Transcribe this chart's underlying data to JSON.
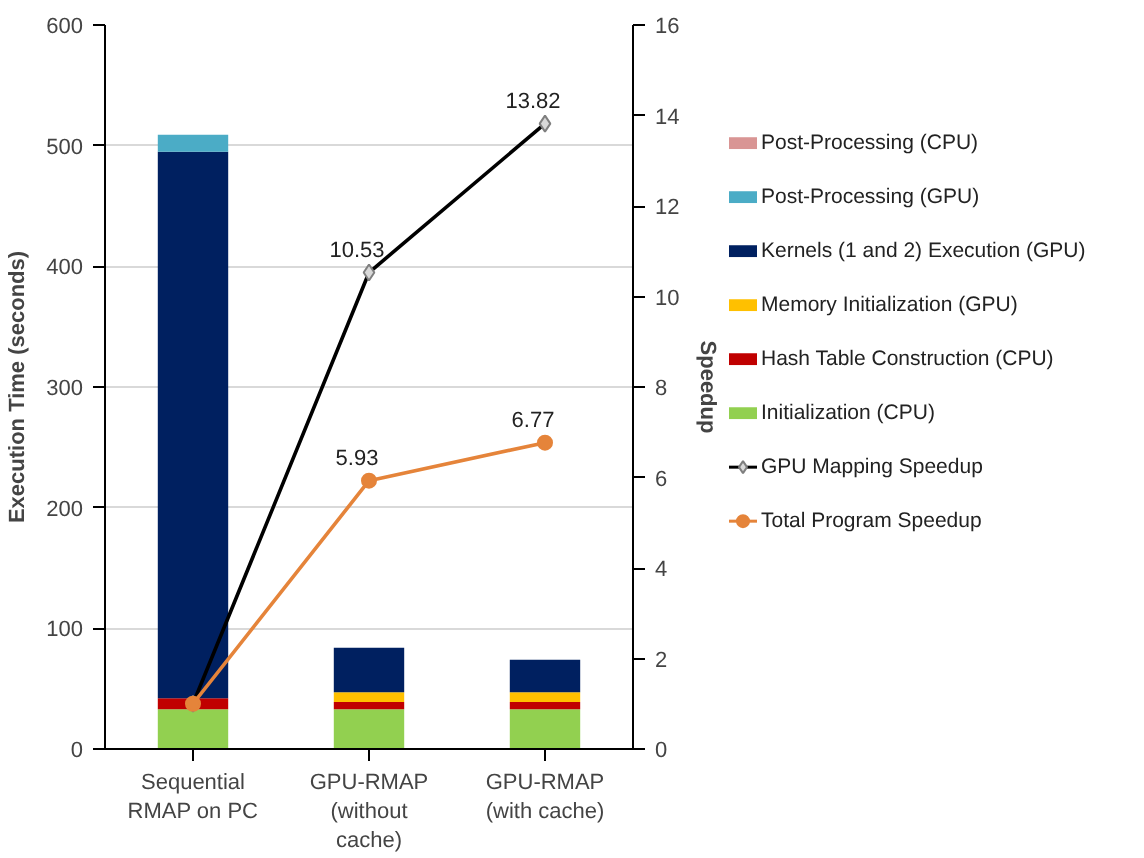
{
  "chart_data": {
    "type": "bar",
    "stacked": true,
    "categories": [
      "Sequential\nRMAP on PC",
      "GPU-RMAP\n(without\ncache)",
      "GPU-RMAP\n(with cache)"
    ],
    "ylabel": "Execution Time (seconds)",
    "y2label": "Speedup",
    "ylim": [
      0,
      600
    ],
    "yticks": [
      0,
      100,
      200,
      300,
      400,
      500,
      600
    ],
    "y2lim": [
      0,
      16
    ],
    "y2ticks": [
      0,
      2,
      4,
      6,
      8,
      10,
      12,
      14,
      16
    ],
    "grid": "y",
    "legend": "right",
    "series": [
      {
        "name": "Initialization (CPU)",
        "color": "#92d050",
        "values": [
          33,
          33,
          33
        ]
      },
      {
        "name": "Hash Table Construction (CPU)",
        "color": "#c00000",
        "values": [
          9,
          6,
          6
        ]
      },
      {
        "name": "Memory Initialization (GPU)",
        "color": "#ffc000",
        "values": [
          0,
          8,
          8
        ]
      },
      {
        "name": "Kernels (1 and 2) Execution (GPU)",
        "color": "#002060",
        "values": [
          453,
          37,
          27
        ]
      },
      {
        "name": "Post-Processing (GPU)",
        "color": "#4bacc6",
        "values": [
          14,
          0,
          0
        ]
      },
      {
        "name": "Post-Processing (CPU)",
        "color": "#d99594",
        "values": [
          0,
          0,
          0
        ]
      },
      {
        "name": "GPU Mapping Speedup",
        "type": "line",
        "axis": "y2",
        "color": "#000000",
        "marker": "diamond",
        "values": [
          1,
          10.53,
          13.82
        ],
        "value_labels": [
          null,
          "10.53",
          "13.82"
        ]
      },
      {
        "name": "Total Program Speedup",
        "type": "line",
        "axis": "y2",
        "color": "#e5843a",
        "marker": "circle",
        "values": [
          1,
          5.93,
          6.77
        ],
        "value_labels": [
          null,
          "5.93",
          "6.77"
        ]
      }
    ]
  }
}
